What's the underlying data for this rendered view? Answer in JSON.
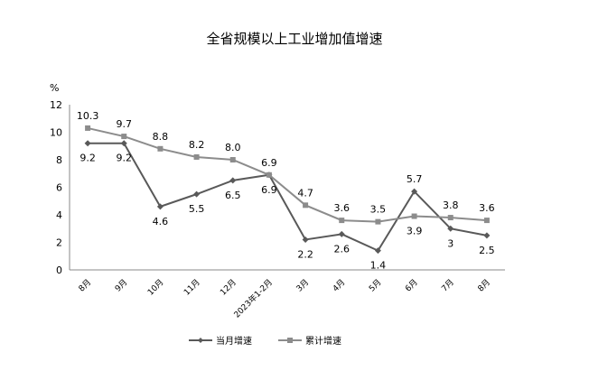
{
  "chart_data": {
    "type": "line",
    "title": "全省规模以上工业增加值增速",
    "ylabel": "%",
    "xlabel": "",
    "ylim": [
      0,
      12
    ],
    "yticks": [
      0,
      2,
      4,
      6,
      8,
      10,
      12
    ],
    "ytick_labels": [
      "0",
      "2",
      "4",
      "6",
      "8",
      "10",
      "12"
    ],
    "grid": false,
    "legend_position": "bottom",
    "categories": [
      "8月",
      "9月",
      "10月",
      "11月",
      "12月",
      "2023年1-2月",
      "3月",
      "4月",
      "5月",
      "6月",
      "7月",
      "8月"
    ],
    "series": [
      {
        "name": "当月增速",
        "marker": "diamond",
        "color": "#595959",
        "values": [
          9.2,
          9.2,
          4.6,
          5.5,
          6.5,
          6.9,
          2.2,
          2.6,
          1.4,
          5.7,
          3,
          2.5
        ],
        "labels": [
          "9.2",
          "9.2",
          "4.6",
          "5.5",
          "6.5",
          "6.9",
          "2.2",
          "2.6",
          "1.4",
          "5.7",
          "3",
          "2.5"
        ]
      },
      {
        "name": "累计增速",
        "marker": "square",
        "color": "#8c8c8c",
        "values": [
          10.3,
          9.7,
          8.8,
          8.2,
          8.0,
          6.9,
          4.7,
          3.6,
          3.5,
          3.9,
          3.8,
          3.6
        ],
        "labels": [
          "10.3",
          "9.7",
          "8.8",
          "8.2",
          "8.0",
          "6.9",
          "4.7",
          "3.6",
          "3.5",
          "3.9",
          "3.8",
          "3.6"
        ]
      }
    ]
  }
}
